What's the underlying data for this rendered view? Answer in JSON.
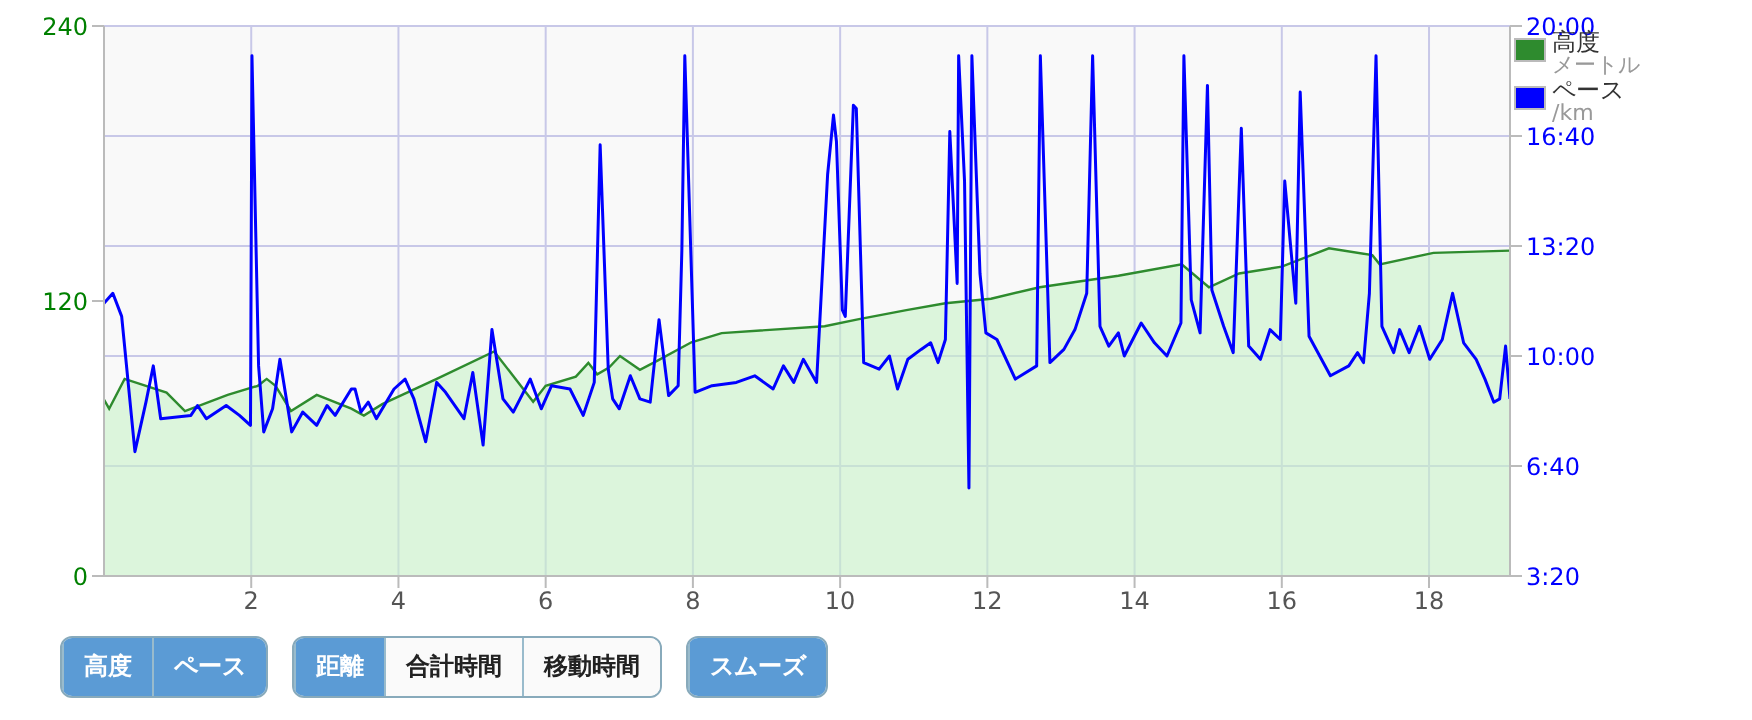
{
  "chart_data": {
    "type": "line",
    "xlim": [
      0,
      19.1
    ],
    "xticks": [
      2,
      4,
      6,
      8,
      10,
      12,
      14,
      16,
      18
    ],
    "ylim": [
      0,
      240
    ],
    "yticks": [
      0,
      120,
      240
    ],
    "y2lim": [
      3.333,
      20
    ],
    "y2ticks": [
      {
        "value": 3.333,
        "label": "3:20"
      },
      {
        "value": 6.667,
        "label": "6:40"
      },
      {
        "value": 10,
        "label": "10:00"
      },
      {
        "value": 13.333,
        "label": "13:20"
      },
      {
        "value": 16.667,
        "label": "16:40"
      },
      {
        "value": 20,
        "label": "20:00"
      }
    ],
    "grid": true,
    "legend": "top right",
    "series": [
      {
        "name": "高度",
        "type": "area",
        "color": "#2e8b2e",
        "x": [
          0,
          0.07,
          0.28,
          0.85,
          1.1,
          1.68,
          2.09,
          2.21,
          2.33,
          2.54,
          2.89,
          3.36,
          3.53,
          3.78,
          4.52,
          5.3,
          5.83,
          6.0,
          6.41,
          6.58,
          6.7,
          6.86,
          7.01,
          7.28,
          7.52,
          7.98,
          8.39,
          9.79,
          10.24,
          10.9,
          11.43,
          12.05,
          12.71,
          13.78,
          14.64,
          15.01,
          15.42,
          16.0,
          16.64,
          17.23,
          17.33,
          18.06,
          19.1
        ],
        "values": [
          77,
          73,
          86,
          80,
          72,
          79,
          83,
          86,
          83,
          72,
          79,
          73,
          70,
          75,
          86,
          98,
          76,
          83,
          87,
          93,
          88,
          91,
          96,
          90,
          94,
          102,
          106,
          109,
          112,
          116,
          119,
          121,
          126,
          131,
          136,
          126,
          132,
          135,
          143,
          140,
          136,
          141,
          142
        ]
      },
      {
        "name": "ペース",
        "axis": "y2",
        "color": "#0000ff",
        "x": [
          0,
          0.12,
          0.24,
          0.42,
          0.57,
          0.67,
          0.77,
          1.18,
          1.27,
          1.39,
          1.66,
          1.84,
          1.99,
          2.01,
          2.1,
          2.17,
          2.29,
          2.39,
          2.55,
          2.7,
          2.89,
          3.03,
          3.14,
          3.36,
          3.41,
          3.49,
          3.59,
          3.7,
          3.94,
          4.09,
          4.21,
          4.37,
          4.52,
          4.64,
          4.89,
          5.01,
          5.15,
          5.27,
          5.42,
          5.56,
          5.79,
          5.94,
          6.08,
          6.33,
          6.51,
          6.66,
          6.74,
          6.85,
          6.91,
          7.0,
          7.15,
          7.28,
          7.42,
          7.54,
          7.67,
          7.8,
          7.85,
          7.89,
          8.03,
          8.26,
          8.59,
          8.84,
          9.09,
          9.23,
          9.37,
          9.5,
          9.68,
          9.83,
          9.91,
          9.95,
          10.03,
          10.07,
          10.18,
          10.22,
          10.32,
          10.53,
          10.67,
          10.78,
          10.92,
          11.1,
          11.23,
          11.33,
          11.43,
          11.49,
          11.59,
          11.61,
          11.69,
          11.75,
          11.79,
          11.9,
          11.98,
          12.13,
          12.38,
          12.67,
          12.72,
          12.85,
          13.04,
          13.19,
          13.35,
          13.43,
          13.53,
          13.65,
          13.78,
          13.86,
          14.09,
          14.27,
          14.44,
          14.63,
          14.67,
          14.77,
          14.89,
          14.99,
          15.05,
          15.21,
          15.34,
          15.45,
          15.55,
          15.71,
          15.84,
          15.98,
          16.04,
          16.19,
          16.25,
          16.37,
          16.66,
          16.91,
          17.03,
          17.11,
          17.19,
          17.28,
          17.36,
          17.52,
          17.6,
          17.73,
          17.87,
          18.01,
          18.18,
          18.32,
          18.47,
          18.64,
          18.76,
          18.88,
          18.96,
          19.04,
          19.1
        ],
        "values": [
          11.6,
          11.9,
          11.2,
          7.1,
          8.6,
          9.7,
          8.1,
          8.2,
          8.5,
          8.1,
          8.5,
          8.2,
          7.9,
          19.1,
          9.7,
          7.7,
          8.4,
          9.9,
          7.7,
          8.3,
          7.9,
          8.5,
          8.2,
          9.0,
          9.0,
          8.3,
          8.6,
          8.1,
          9.0,
          9.3,
          8.7,
          7.4,
          9.2,
          8.9,
          8.1,
          9.5,
          7.3,
          10.8,
          8.7,
          8.3,
          9.3,
          8.4,
          9.1,
          9.0,
          8.2,
          9.2,
          16.4,
          9.6,
          8.7,
          8.4,
          9.4,
          8.7,
          8.6,
          11.1,
          8.8,
          9.1,
          13.2,
          19.1,
          8.9,
          9.1,
          9.2,
          9.4,
          9.0,
          9.7,
          9.2,
          9.9,
          9.2,
          15.5,
          17.3,
          16.5,
          11.4,
          11.2,
          17.6,
          17.5,
          9.8,
          9.6,
          10.0,
          9.0,
          9.9,
          10.2,
          10.4,
          9.8,
          10.5,
          16.8,
          12.2,
          19.1,
          15.3,
          6.0,
          19.1,
          12.5,
          10.7,
          10.5,
          9.3,
          9.7,
          19.1,
          9.8,
          10.2,
          10.8,
          11.9,
          19.1,
          10.9,
          10.3,
          10.7,
          10.0,
          11.0,
          10.4,
          10.0,
          11.0,
          19.1,
          11.7,
          10.7,
          18.2,
          12.0,
          10.9,
          10.1,
          16.9,
          10.3,
          9.9,
          10.8,
          10.5,
          15.3,
          11.6,
          18.0,
          10.6,
          9.4,
          9.7,
          10.1,
          9.8,
          11.9,
          19.1,
          10.9,
          10.1,
          10.8,
          10.1,
          10.9,
          9.9,
          10.5,
          11.9,
          10.4,
          9.9,
          9.3,
          8.6,
          8.7,
          10.3,
          8.7
        ]
      }
    ],
    "annotations": [
      "メートル",
      "/km",
      "高度",
      "ペース",
      "距離",
      "合計時間",
      "移動時間",
      "スムーズ"
    ]
  }
}
